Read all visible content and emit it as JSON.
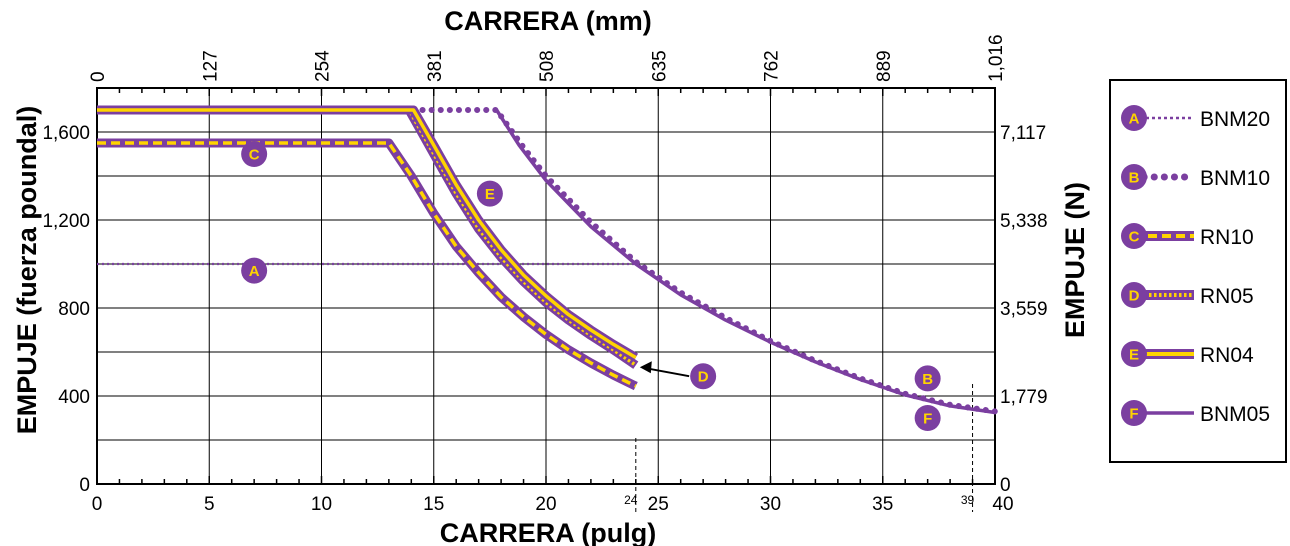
{
  "chart_data": {
    "type": "line",
    "x_bottom": {
      "label": "CARRERA (pulg)",
      "range": [
        0,
        40
      ],
      "ticks": [
        0,
        5,
        10,
        15,
        20,
        25,
        30,
        35,
        40
      ],
      "marked": [
        "24",
        "39"
      ]
    },
    "x_top": {
      "label": "CARRERA (mm)",
      "ticks": [
        "0",
        "127",
        "254",
        "381",
        "508",
        "635",
        "762",
        "889",
        "1,016"
      ]
    },
    "y_left": {
      "label": "EMPUJE (fuerza poundal)",
      "range": [
        0,
        1800
      ],
      "ticks": [
        "0",
        "400",
        "800",
        "1,200",
        "1,600"
      ]
    },
    "y_right": {
      "label": "EMPUJE (N)",
      "ticks": [
        "0",
        "1,779",
        "3,559",
        "5,338",
        "7,117"
      ]
    },
    "grid": true,
    "legend_position": "right",
    "series": [
      {
        "key": "A",
        "name": "BNM20",
        "style": "dotted-thin",
        "points": [
          [
            0,
            1000
          ],
          [
            24,
            1000
          ]
        ]
      },
      {
        "key": "B",
        "name": "BNM10",
        "style": "dotted-heavy",
        "points": [
          [
            14.5,
            1700
          ],
          [
            17.8,
            1700
          ],
          [
            19,
            1530
          ],
          [
            20,
            1400
          ],
          [
            22,
            1190
          ],
          [
            24,
            1010
          ],
          [
            26,
            870
          ],
          [
            28,
            755
          ],
          [
            30,
            650
          ],
          [
            32,
            560
          ],
          [
            34,
            480
          ],
          [
            36,
            410
          ],
          [
            38,
            360
          ],
          [
            40,
            330
          ]
        ]
      },
      {
        "key": "C",
        "name": "RN10",
        "style": "yellow-dashed",
        "points": [
          [
            0,
            1550
          ],
          [
            13,
            1550
          ],
          [
            14,
            1400
          ],
          [
            15,
            1230
          ],
          [
            16,
            1080
          ],
          [
            17,
            960
          ],
          [
            18,
            850
          ],
          [
            19,
            760
          ],
          [
            20,
            680
          ],
          [
            21,
            610
          ],
          [
            22,
            550
          ],
          [
            23,
            495
          ],
          [
            24,
            445
          ]
        ]
      },
      {
        "key": "D",
        "name": "RN05",
        "style": "yellow-dotted",
        "points": [
          [
            0,
            1700
          ],
          [
            13.9,
            1700
          ],
          [
            15,
            1500
          ],
          [
            16,
            1320
          ],
          [
            17,
            1160
          ],
          [
            18,
            1030
          ],
          [
            19,
            920
          ],
          [
            20,
            825
          ],
          [
            21,
            745
          ],
          [
            22,
            675
          ],
          [
            23,
            610
          ],
          [
            24,
            540
          ]
        ]
      },
      {
        "key": "E",
        "name": "RN04",
        "style": "yellow-solid",
        "points": [
          [
            0,
            1700
          ],
          [
            14.1,
            1700
          ],
          [
            15,
            1540
          ],
          [
            16,
            1360
          ],
          [
            17,
            1200
          ],
          [
            18,
            1065
          ],
          [
            19,
            950
          ],
          [
            20,
            855
          ],
          [
            21,
            770
          ],
          [
            22,
            700
          ],
          [
            23,
            635
          ],
          [
            24,
            575
          ]
        ]
      },
      {
        "key": "F",
        "name": "BNM05",
        "style": "purple-solid",
        "points": [
          [
            17.8,
            1700
          ],
          [
            18.8,
            1540
          ],
          [
            20,
            1380
          ],
          [
            22,
            1170
          ],
          [
            24,
            1000
          ],
          [
            26,
            860
          ],
          [
            28,
            745
          ],
          [
            30,
            645
          ],
          [
            32,
            555
          ],
          [
            34,
            475
          ],
          [
            36,
            405
          ],
          [
            38,
            355
          ],
          [
            40,
            325
          ]
        ]
      }
    ],
    "annotations": [
      {
        "key": "A",
        "label": "A",
        "at": [
          7,
          970
        ]
      },
      {
        "key": "B",
        "label": "B",
        "at": [
          37,
          480
        ]
      },
      {
        "key": "C",
        "label": "C",
        "at": [
          7,
          1500
        ]
      },
      {
        "key": "D",
        "label": "D",
        "at": [
          27,
          490
        ]
      },
      {
        "key": "E",
        "label": "E",
        "at": [
          17.5,
          1320
        ]
      },
      {
        "key": "F",
        "label": "F",
        "at": [
          37,
          300
        ]
      }
    ]
  },
  "colors": {
    "purple": "#7b3fa0",
    "yellow": "#ffd400",
    "grid": "#000000"
  }
}
